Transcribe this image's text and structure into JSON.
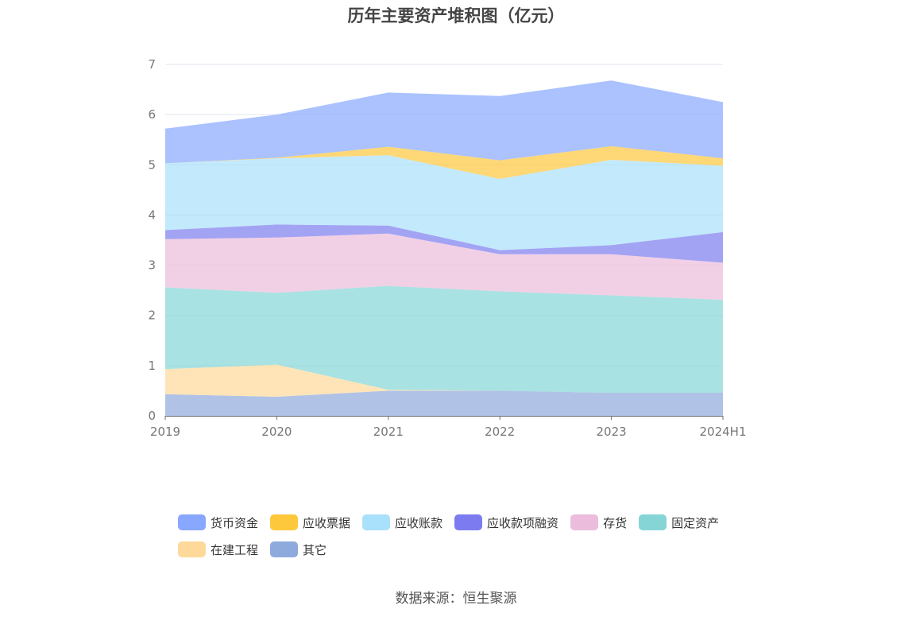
{
  "chart_data": {
    "type": "area",
    "stacked": true,
    "title": "历年主要资产堆积图（亿元）",
    "categories": [
      "2019",
      "2020",
      "2021",
      "2022",
      "2023",
      "2024H1"
    ],
    "ylim": [
      0,
      7
    ],
    "yticks": [
      0,
      1,
      2,
      3,
      4,
      5,
      6,
      7
    ],
    "grid": true,
    "legend_position": "bottom",
    "series": [
      {
        "name": "其它",
        "color": "#8eaadc",
        "values": [
          0.43,
          0.38,
          0.5,
          0.5,
          0.46,
          0.46
        ]
      },
      {
        "name": "在建工程",
        "color": "#ffd99a",
        "values": [
          0.5,
          0.64,
          0.02,
          0.0,
          0.0,
          0.0
        ]
      },
      {
        "name": "固定资产",
        "color": "#85d5d6",
        "values": [
          1.63,
          1.43,
          2.07,
          1.98,
          1.94,
          1.85
        ]
      },
      {
        "name": "存货",
        "color": "#ebbcdc",
        "values": [
          0.96,
          1.1,
          1.04,
          0.74,
          0.82,
          0.74
        ]
      },
      {
        "name": "应收款项融资",
        "color": "#7c7cf0",
        "values": [
          0.18,
          0.26,
          0.16,
          0.08,
          0.18,
          0.61
        ]
      },
      {
        "name": "应收账款",
        "color": "#a9e0fb",
        "values": [
          1.33,
          1.32,
          1.4,
          1.42,
          1.7,
          1.32
        ]
      },
      {
        "name": "应收票据",
        "color": "#fec83c",
        "values": [
          0.0,
          0.01,
          0.17,
          0.37,
          0.27,
          0.15
        ]
      },
      {
        "name": "货币资金",
        "color": "#88a8ff",
        "values": [
          0.69,
          0.86,
          1.08,
          1.28,
          1.31,
          1.12
        ]
      }
    ]
  },
  "legend_order": [
    "货币资金",
    "应收票据",
    "应收账款",
    "应收款项融资",
    "存货",
    "固定资产",
    "在建工程",
    "其它"
  ],
  "source": "数据来源：恒生聚源"
}
